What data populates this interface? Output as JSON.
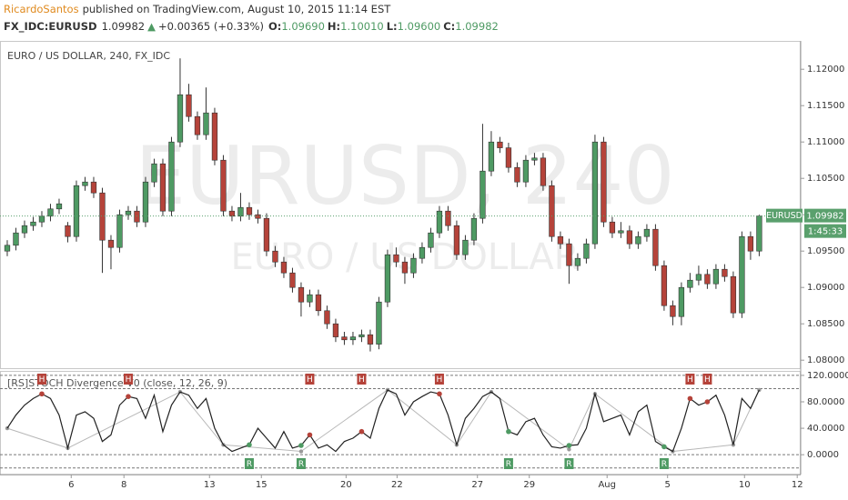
{
  "header": {
    "author": "RicardoSantos",
    "published": "published on TradingView.com, August 10, 2015 11:14 EST",
    "symbol": "FX_IDC:EURUSD",
    "price": "1.09982",
    "arrow": "▲",
    "change": "+0.00365 (+0.33%)",
    "o_label": "O:",
    "o": "1.09690",
    "h_label": "H:",
    "h": "1.10010",
    "l_label": "L:",
    "l": "1.09600",
    "c_label": "C:",
    "c": "1.09982"
  },
  "chart_data": [
    {
      "type": "candlestick",
      "title": "EURO / US DOLLAR, 240, FX_IDC",
      "watermark": "EURUSD, 240",
      "watermark_sub": "EURO / US DOLLAR",
      "up_color": "#4e9a63",
      "down_color": "#b5433a",
      "candles": [
        [
          1.095,
          1.0965,
          1.0943,
          1.0958
        ],
        [
          1.0958,
          1.0982,
          1.0951,
          1.0975
        ],
        [
          1.0975,
          1.0992,
          1.0968,
          1.0985
        ],
        [
          1.0985,
          1.0997,
          1.0978,
          1.099
        ],
        [
          1.099,
          1.1005,
          1.0983,
          1.0998
        ],
        [
          1.0998,
          1.1015,
          1.0991,
          1.1008
        ],
        [
          1.1008,
          1.1022,
          1.1001,
          1.1015
        ],
        [
          1.0985,
          1.099,
          1.0962,
          1.097
        ],
        [
          1.097,
          1.1047,
          1.0963,
          1.104
        ],
        [
          1.104,
          1.1052,
          1.1033,
          1.1045
        ],
        [
          1.1045,
          1.1052,
          1.1023,
          1.103
        ],
        [
          1.103,
          1.1037,
          1.092,
          1.0965
        ],
        [
          1.0965,
          1.0972,
          1.0925,
          1.0955
        ],
        [
          1.0955,
          1.1007,
          1.0948,
          1.1
        ],
        [
          1.1,
          1.1012,
          1.0993,
          1.1005
        ],
        [
          1.1005,
          1.1012,
          1.0983,
          1.099
        ],
        [
          1.099,
          1.1052,
          1.0983,
          1.1045
        ],
        [
          1.1045,
          1.1077,
          1.1038,
          1.107
        ],
        [
          1.107,
          1.1077,
          1.0998,
          1.1005
        ],
        [
          1.1005,
          1.1107,
          1.0998,
          1.11
        ],
        [
          1.11,
          1.1215,
          1.1093,
          1.1165
        ],
        [
          1.1165,
          1.118,
          1.1128,
          1.1135
        ],
        [
          1.1135,
          1.1142,
          1.1103,
          1.111
        ],
        [
          1.111,
          1.1175,
          1.1103,
          1.114
        ],
        [
          1.114,
          1.1147,
          1.1068,
          1.1075
        ],
        [
          1.1075,
          1.1082,
          1.0998,
          1.1005
        ],
        [
          1.1005,
          1.1012,
          1.0991,
          1.0998
        ],
        [
          1.0998,
          1.103,
          1.0991,
          1.101
        ],
        [
          1.101,
          1.1017,
          1.0993,
          1.1
        ],
        [
          1.1,
          1.1007,
          1.0988,
          1.0995
        ],
        [
          1.0995,
          1.1002,
          1.0943,
          1.095
        ],
        [
          1.095,
          1.0957,
          1.0928,
          1.0935
        ],
        [
          1.0935,
          1.0942,
          1.0913,
          1.092
        ],
        [
          1.092,
          1.0927,
          1.0893,
          1.09
        ],
        [
          1.09,
          1.0907,
          1.086,
          1.088
        ],
        [
          1.088,
          1.0897,
          1.0873,
          1.089
        ],
        [
          1.089,
          1.0897,
          1.0861,
          1.0868
        ],
        [
          1.0868,
          1.0875,
          1.0843,
          1.085
        ],
        [
          1.085,
          1.0857,
          1.0825,
          1.0832
        ],
        [
          1.0832,
          1.0839,
          1.0821,
          1.0828
        ],
        [
          1.0828,
          1.0839,
          1.0821,
          1.0832
        ],
        [
          1.0832,
          1.0842,
          1.0825,
          1.0835
        ],
        [
          1.0835,
          1.0842,
          1.0812,
          1.0822
        ],
        [
          1.0822,
          1.0887,
          1.0815,
          1.088
        ],
        [
          1.088,
          1.0952,
          1.0873,
          1.0945
        ],
        [
          1.0945,
          1.0955,
          1.0928,
          1.0935
        ],
        [
          1.0935,
          1.0942,
          1.0905,
          1.092
        ],
        [
          1.092,
          1.0947,
          1.0913,
          1.094
        ],
        [
          1.094,
          1.0962,
          1.0933,
          1.0955
        ],
        [
          1.0955,
          1.0982,
          1.0948,
          1.0975
        ],
        [
          1.0975,
          1.1012,
          1.0968,
          1.1005
        ],
        [
          1.1005,
          1.1012,
          1.0978,
          1.0985
        ],
        [
          1.0985,
          1.0992,
          1.0938,
          1.0945
        ],
        [
          1.0945,
          1.0972,
          1.0938,
          1.0965
        ],
        [
          1.0965,
          1.1002,
          1.0958,
          1.0995
        ],
        [
          1.0995,
          1.1125,
          1.0988,
          1.106
        ],
        [
          1.106,
          1.1115,
          1.1053,
          1.11
        ],
        [
          1.11,
          1.1107,
          1.1085,
          1.1092
        ],
        [
          1.1092,
          1.1099,
          1.1058,
          1.1065
        ],
        [
          1.1065,
          1.1072,
          1.1038,
          1.1045
        ],
        [
          1.1045,
          1.1082,
          1.1038,
          1.1075
        ],
        [
          1.1075,
          1.1085,
          1.1068,
          1.1078
        ],
        [
          1.1078,
          1.1085,
          1.1033,
          1.104
        ],
        [
          1.104,
          1.1047,
          1.0963,
          1.097
        ],
        [
          1.097,
          1.0977,
          1.0953,
          1.096
        ],
        [
          1.096,
          1.0967,
          1.0905,
          1.093
        ],
        [
          1.093,
          1.0947,
          1.0923,
          1.094
        ],
        [
          1.094,
          1.0967,
          1.0933,
          1.096
        ],
        [
          1.096,
          1.111,
          1.0953,
          1.11
        ],
        [
          1.11,
          1.1107,
          1.0983,
          1.099
        ],
        [
          1.099,
          1.0997,
          1.0968,
          1.0975
        ],
        [
          1.0975,
          1.099,
          1.0968,
          1.0978
        ],
        [
          1.0978,
          1.0985,
          1.0953,
          1.096
        ],
        [
          1.096,
          1.0977,
          1.0953,
          1.097
        ],
        [
          1.097,
          1.0987,
          1.0963,
          1.098
        ],
        [
          1.098,
          1.0987,
          1.0923,
          1.093
        ],
        [
          1.093,
          1.0937,
          1.0868,
          1.0875
        ],
        [
          1.0875,
          1.0882,
          1.0848,
          1.086
        ],
        [
          1.086,
          1.0907,
          1.0848,
          1.09
        ],
        [
          1.09,
          1.092,
          1.0893,
          1.091
        ],
        [
          1.091,
          1.093,
          1.0903,
          1.0918
        ],
        [
          1.0918,
          1.0925,
          1.0898,
          1.0905
        ],
        [
          1.0905,
          1.0932,
          1.0898,
          1.0925
        ],
        [
          1.0925,
          1.0932,
          1.0908,
          1.0915
        ],
        [
          1.0915,
          1.0922,
          1.0858,
          1.0865
        ],
        [
          1.0865,
          1.0977,
          1.0858,
          1.097
        ],
        [
          1.097,
          1.0977,
          1.0938,
          1.095
        ],
        [
          1.095,
          1.1,
          1.0943,
          1.09982
        ]
      ],
      "last_price": 1.09982,
      "last_symbol": "EURUSD",
      "countdown": "1:45:33",
      "last_color": "#5aa06d",
      "xlim": [
        -0.84,
        91.8
      ],
      "xticks": [
        {
          "value": 7.4,
          "label": "6"
        },
        {
          "value": 13.5,
          "label": "8"
        },
        {
          "value": 23.4,
          "label": "13"
        },
        {
          "value": 29.4,
          "label": "15"
        },
        {
          "value": 39.2,
          "label": "20"
        },
        {
          "value": 45.1,
          "label": "22"
        },
        {
          "value": 54.4,
          "label": "27"
        },
        {
          "value": 60.4,
          "label": "29"
        },
        {
          "value": 69.4,
          "label": "Aug"
        },
        {
          "value": 76.4,
          "label": "5"
        },
        {
          "value": 85.3,
          "label": "10"
        },
        {
          "value": 91.4,
          "label": "12"
        }
      ],
      "ylim": [
        1.0789,
        1.1239
      ],
      "yticks": [
        {
          "value": 1.08,
          "label": "1.08000"
        },
        {
          "value": 1.085,
          "label": "1.08500"
        },
        {
          "value": 1.09,
          "label": "1.09000"
        },
        {
          "value": 1.095,
          "label": "1.09500"
        },
        {
          "value": 1.1,
          "label": "1.10000"
        },
        {
          "value": 1.105,
          "label": "1.10500"
        },
        {
          "value": 1.11,
          "label": "1.11000"
        },
        {
          "value": 1.115,
          "label": "1.11500"
        },
        {
          "value": 1.12,
          "label": "1.12000"
        }
      ]
    },
    {
      "type": "oscillator",
      "title": "[RS]STOCH Divergence V0 (close, 12, 26, 9)",
      "series": [
        {
          "color": "#222222",
          "values": [
            40,
            60,
            75,
            85,
            92,
            85,
            60,
            10,
            60,
            65,
            55,
            20,
            30,
            75,
            88,
            85,
            55,
            90,
            35,
            75,
            95,
            90,
            70,
            85,
            40,
            15,
            5,
            10,
            15,
            40,
            25,
            10,
            35,
            10,
            14,
            30,
            10,
            15,
            5,
            20,
            25,
            35,
            25,
            70,
            98,
            92,
            60,
            80,
            88,
            95,
            92,
            60,
            15,
            55,
            70,
            88,
            95,
            85,
            35,
            30,
            50,
            55,
            30,
            12,
            10,
            14,
            15,
            40,
            92,
            50,
            55,
            60,
            30,
            65,
            75,
            20,
            12,
            5,
            40,
            85,
            75,
            80,
            90,
            60,
            15,
            85,
            70,
            98
          ]
        },
        {
          "color": "#b8b8b8",
          "x": [
            0,
            7,
            20,
            25,
            34,
            44,
            52,
            56,
            65,
            68,
            77,
            84,
            87
          ],
          "values": [
            40,
            10,
            95,
            15,
            5,
            98,
            15,
            95,
            8,
            92,
            5,
            15,
            98
          ]
        }
      ],
      "markers": [
        {
          "label": "H",
          "x": 4
        },
        {
          "label": "H",
          "x": 14
        },
        {
          "label": "H",
          "x": 35
        },
        {
          "label": "H",
          "x": 41
        },
        {
          "label": "H",
          "x": 50
        },
        {
          "label": "H",
          "x": 79
        },
        {
          "label": "H",
          "x": 81
        },
        {
          "label": "R",
          "x": 28
        },
        {
          "label": "R",
          "x": 34
        },
        {
          "label": "R",
          "x": 58
        },
        {
          "label": "R",
          "x": 65
        },
        {
          "label": "R",
          "x": 76
        }
      ],
      "h_color": "#b5433a",
      "r_color": "#4e9a63",
      "levels": [
        120,
        100,
        0,
        -20
      ],
      "ylim": [
        -30,
        124
      ],
      "yticks": [
        {
          "value": 0,
          "label": "0.0000"
        },
        {
          "value": 40,
          "label": "40.0000"
        },
        {
          "value": 80,
          "label": "80.0000"
        },
        {
          "value": 120,
          "label": "120.0000"
        }
      ]
    }
  ]
}
